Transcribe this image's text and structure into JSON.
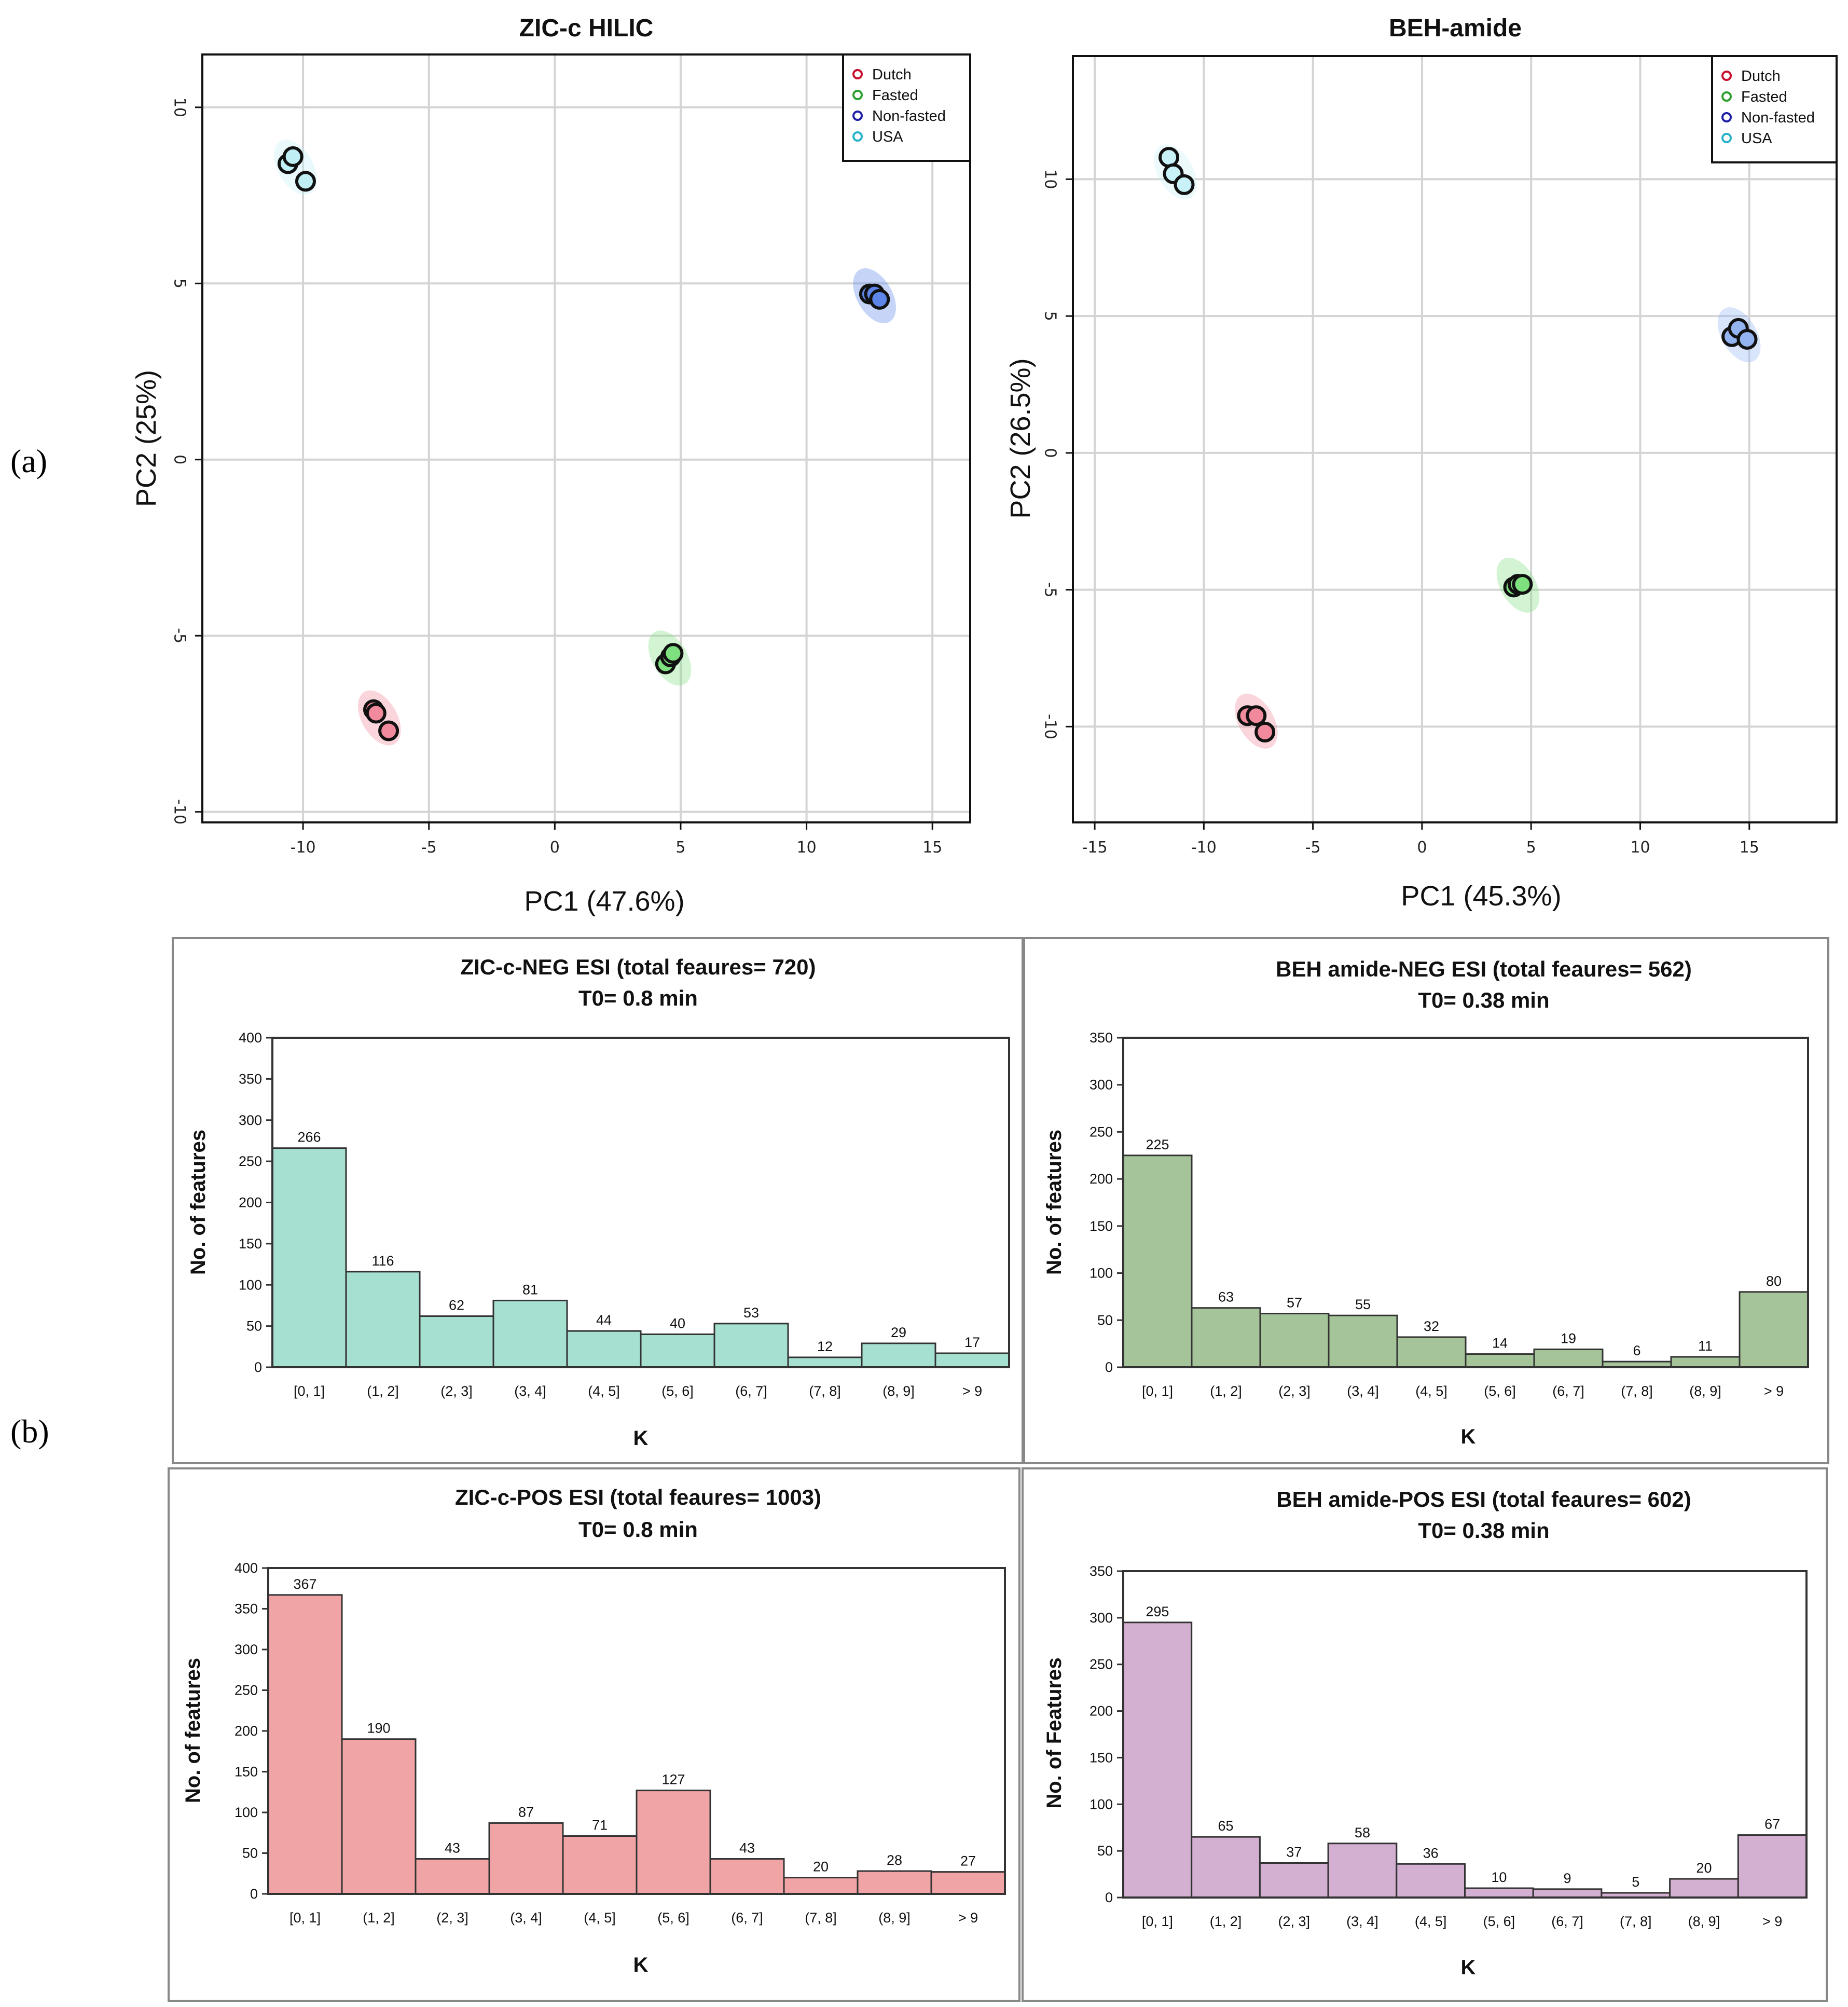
{
  "panel_labels": {
    "a": "(a)",
    "b": "(b)"
  },
  "chart_data": [
    {
      "type": "scatter",
      "title": "ZIC-c HILIC",
      "xlabel": "PC1 (47.6%)",
      "ylabel": "PC2 (25%)",
      "xlim": [
        -14,
        16.5
      ],
      "ylim": [
        -10.3,
        11.5
      ],
      "xticks": [
        -10,
        -5,
        0,
        5,
        10,
        15
      ],
      "yticks": [
        -10,
        -5,
        0,
        5,
        10
      ],
      "legend_position": "top-right",
      "grid": true,
      "series": [
        {
          "name": "Dutch",
          "color": "#c8102e",
          "fill": "#f08a9c",
          "points": [
            [
              -7.2,
              -7.1
            ],
            [
              -7.1,
              -7.2
            ],
            [
              -6.6,
              -7.7
            ]
          ]
        },
        {
          "name": "Fasted",
          "color": "#2ca02c",
          "fill": "#7ee07e",
          "points": [
            [
              4.4,
              -5.8
            ],
            [
              4.6,
              -5.6
            ],
            [
              4.7,
              -5.5
            ]
          ]
        },
        {
          "name": "Non-fasted",
          "color": "#1f1fa8",
          "fill": "#5d86e8",
          "points": [
            [
              12.5,
              4.7
            ],
            [
              12.7,
              4.7
            ],
            [
              12.9,
              4.55
            ]
          ]
        },
        {
          "name": "USA",
          "color": "#27b3c9",
          "fill": "#bfeff5",
          "points": [
            [
              -10.6,
              8.4
            ],
            [
              -10.4,
              8.6
            ],
            [
              -9.9,
              7.9
            ]
          ]
        }
      ]
    },
    {
      "type": "scatter",
      "title": "BEH-amide",
      "xlabel": "PC1 (45.3%)",
      "ylabel": "PC2 (26.5%)",
      "xlim": [
        -16,
        19
      ],
      "ylim": [
        -13.5,
        14.5
      ],
      "xticks": [
        -15,
        -10,
        -5,
        0,
        5,
        10,
        15
      ],
      "yticks": [
        -10,
        -5,
        0,
        5,
        10
      ],
      "legend_position": "top-right",
      "grid": true,
      "series": [
        {
          "name": "Dutch",
          "color": "#c8102e",
          "fill": "#f08a9c",
          "points": [
            [
              -8.0,
              -9.6
            ],
            [
              -7.6,
              -9.6
            ],
            [
              -7.2,
              -10.2
            ]
          ]
        },
        {
          "name": "Fasted",
          "color": "#2ca02c",
          "fill": "#7ee07e",
          "points": [
            [
              4.2,
              -4.9
            ],
            [
              4.4,
              -4.8
            ],
            [
              4.6,
              -4.8
            ]
          ]
        },
        {
          "name": "Non-fasted",
          "color": "#1f1fa8",
          "fill": "#93b4f0",
          "points": [
            [
              14.2,
              4.25
            ],
            [
              14.5,
              4.55
            ],
            [
              14.9,
              4.15
            ]
          ]
        },
        {
          "name": "USA",
          "color": "#27b3c9",
          "fill": "#c8f2f7",
          "points": [
            [
              -11.6,
              10.8
            ],
            [
              -11.4,
              10.2
            ],
            [
              -10.9,
              9.8
            ]
          ]
        }
      ]
    },
    {
      "type": "bar",
      "title": "ZIC-c-NEG ESI (total feaures= 720)",
      "subtitle": "T0= 0.8 min",
      "xlabel": "K",
      "ylabel": "No. of features",
      "ylim": [
        0,
        400
      ],
      "yticks": [
        0,
        50,
        100,
        150,
        200,
        250,
        300,
        350,
        400
      ],
      "categories": [
        "[0, 1]",
        "(1, 2]",
        "(2, 3]",
        "(3, 4]",
        "(4, 5]",
        "(5, 6]",
        "(6, 7]",
        "(7, 8]",
        "(8, 9]",
        "> 9"
      ],
      "values": [
        266,
        116,
        62,
        81,
        44,
        40,
        53,
        12,
        29,
        17
      ],
      "color": "#a6e0d1"
    },
    {
      "type": "bar",
      "title": "BEH amide-NEG ESI (total feaures= 562)",
      "subtitle": "T0= 0.38 min",
      "xlabel": "K",
      "ylabel": "No. of features",
      "ylim": [
        0,
        350
      ],
      "yticks": [
        0,
        50,
        100,
        150,
        200,
        250,
        300,
        350
      ],
      "categories": [
        "[0, 1]",
        "(1, 2]",
        "(2, 3]",
        "(3, 4]",
        "(4, 5]",
        "(5, 6]",
        "(6, 7]",
        "(7, 8]",
        "(8, 9]",
        "> 9"
      ],
      "values": [
        225,
        63,
        57,
        55,
        32,
        14,
        19,
        6,
        11,
        80
      ],
      "color": "#a6c49a"
    },
    {
      "type": "bar",
      "title": "ZIC-c-POS ESI (total feaures= 1003)",
      "subtitle": "T0= 0.8 min",
      "xlabel": "K",
      "ylabel": "No. of features",
      "ylim": [
        0,
        400
      ],
      "yticks": [
        0,
        50,
        100,
        150,
        200,
        250,
        300,
        350,
        400
      ],
      "categories": [
        "[0, 1]",
        "(1, 2]",
        "(2, 3]",
        "(3, 4]",
        "(4, 5]",
        "(5, 6]",
        "(6, 7]",
        "(7, 8]",
        "(8, 9]",
        "> 9"
      ],
      "values": [
        367,
        190,
        43,
        87,
        71,
        127,
        43,
        20,
        28,
        27
      ],
      "color": "#f0a4a6"
    },
    {
      "type": "bar",
      "title": "BEH amide-POS ESI (total feaures= 602)",
      "subtitle": "T0= 0.38 min",
      "xlabel": "K",
      "ylabel": "No. of Features",
      "ylim": [
        0,
        350
      ],
      "yticks": [
        0,
        50,
        100,
        150,
        200,
        250,
        300,
        350
      ],
      "categories": [
        "[0, 1]",
        "(1, 2]",
        "(2, 3]",
        "(3, 4]",
        "(4, 5]",
        "(5, 6]",
        "(6, 7]",
        "(7, 8]",
        "(8, 9]",
        "> 9"
      ],
      "values": [
        295,
        65,
        37,
        58,
        36,
        10,
        9,
        5,
        20,
        67
      ],
      "color": "#d3afd1"
    }
  ]
}
